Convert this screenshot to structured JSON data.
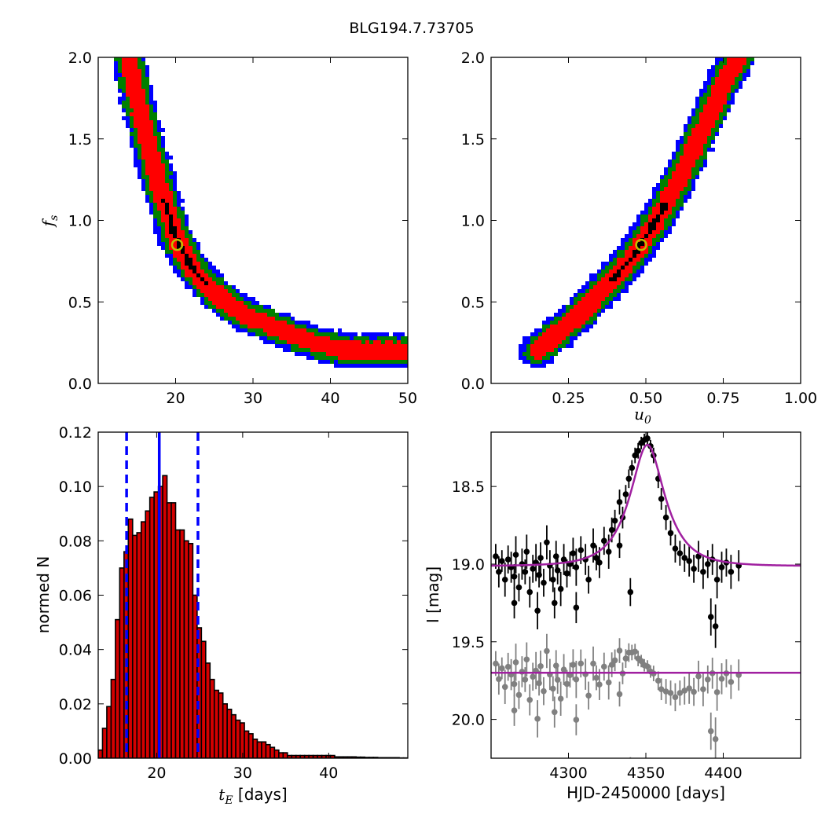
{
  "title": "BLG194.7.73705",
  "colors": {
    "contour_outer": "#0000ff",
    "contour_mid": "#008000",
    "contour_inner": "#ff0000",
    "contour_core": "#000000",
    "best_fit_marker": "#bfbf00",
    "hist_fill": "#d40000",
    "hist_lines": "#0000ff",
    "model_curve": "#a020a0",
    "data_points": "#000000",
    "residual_points": "#808080"
  },
  "chart_data": [
    {
      "id": "fs_vs_tE",
      "type": "heatmap",
      "ylabel": "f_s",
      "xlabel": "",
      "xlim": [
        10,
        50
      ],
      "ylim": [
        0,
        2.0
      ],
      "xticks": [
        "20",
        "30",
        "40",
        "50"
      ],
      "yticks": [
        "0.0",
        "0.5",
        "1.0",
        "1.5",
        "2.0"
      ],
      "xtick_values": [
        20,
        30,
        40,
        50
      ],
      "ytick_values": [
        0,
        0.5,
        1.0,
        1.5,
        2.0
      ],
      "best_fit": {
        "x": 20.2,
        "y": 0.85
      },
      "ridge": [
        [
          14.0,
          2.0
        ],
        [
          15.0,
          1.75
        ],
        [
          16.0,
          1.55
        ],
        [
          17.0,
          1.38
        ],
        [
          18.0,
          1.2
        ],
        [
          19.0,
          1.05
        ],
        [
          20.0,
          0.9
        ],
        [
          21.0,
          0.8
        ],
        [
          22.0,
          0.72
        ],
        [
          23.0,
          0.66
        ],
        [
          25.0,
          0.56
        ],
        [
          27.0,
          0.48
        ],
        [
          29.0,
          0.42
        ],
        [
          32.0,
          0.36
        ],
        [
          35.0,
          0.3
        ],
        [
          38.0,
          0.25
        ],
        [
          42.0,
          0.2
        ],
        [
          49.5,
          0.2
        ]
      ],
      "widths": {
        "core": 0.05,
        "inner": 0.1,
        "mid": 0.15,
        "outer": 0.2
      }
    },
    {
      "id": "fs_vs_u0",
      "type": "heatmap",
      "xlabel": "u_0",
      "ylabel": "",
      "xlim": [
        0.0,
        1.0
      ],
      "ylim": [
        0,
        2.0
      ],
      "xticks": [
        "0.25",
        "0.50",
        "0.75",
        "1.00"
      ],
      "yticks": [
        "0.0",
        "0.5",
        "1.0",
        "1.5",
        "2.0"
      ],
      "xtick_values": [
        0.25,
        0.5,
        0.75,
        1.0
      ],
      "ytick_values": [
        0,
        0.5,
        1.0,
        1.5,
        2.0
      ],
      "best_fit": {
        "x": 0.485,
        "y": 0.85
      },
      "ridge": [
        [
          0.15,
          0.2
        ],
        [
          0.2,
          0.28
        ],
        [
          0.25,
          0.36
        ],
        [
          0.3,
          0.45
        ],
        [
          0.35,
          0.55
        ],
        [
          0.4,
          0.65
        ],
        [
          0.45,
          0.76
        ],
        [
          0.5,
          0.9
        ],
        [
          0.55,
          1.05
        ],
        [
          0.6,
          1.22
        ],
        [
          0.65,
          1.42
        ],
        [
          0.7,
          1.62
        ],
        [
          0.75,
          1.84
        ],
        [
          0.8,
          2.0
        ]
      ],
      "widths": {
        "core": 0.015,
        "inner": 0.025,
        "mid": 0.035,
        "outer": 0.045
      }
    },
    {
      "id": "tE_histogram",
      "type": "bar",
      "xlabel": "t_E [days]",
      "ylabel": "normed N",
      "xlim": [
        13.2,
        49.2
      ],
      "ylim": [
        0,
        0.12
      ],
      "xticks": [
        "20",
        "30",
        "40"
      ],
      "yticks": [
        "0.00",
        "0.02",
        "0.04",
        "0.06",
        "0.08",
        "0.10",
        "0.12"
      ],
      "xtick_values": [
        20,
        30,
        40
      ],
      "ytick_values": [
        0,
        0.02,
        0.04,
        0.06,
        0.08,
        0.1,
        0.12
      ],
      "bin_start": 13.2,
      "bin_width": 0.5,
      "values": [
        0.003,
        0.011,
        0.019,
        0.029,
        0.051,
        0.07,
        0.076,
        0.088,
        0.082,
        0.083,
        0.087,
        0.091,
        0.096,
        0.098,
        0.1,
        0.104,
        0.094,
        0.094,
        0.084,
        0.084,
        0.08,
        0.079,
        0.06,
        0.048,
        0.043,
        0.035,
        0.029,
        0.025,
        0.024,
        0.02,
        0.018,
        0.016,
        0.014,
        0.013,
        0.01,
        0.009,
        0.007,
        0.006,
        0.006,
        0.005,
        0.004,
        0.003,
        0.002,
        0.002,
        0.001,
        0.001,
        0.001,
        0.001,
        0.001,
        0.001,
        0.001,
        0.001,
        0.001,
        0.001,
        0.001,
        0.0005,
        0.0005,
        0.0005,
        0.0005,
        0.0005,
        0.0004,
        0.0004,
        0.0003,
        0.0003,
        0.0003,
        0.0002,
        0.0002,
        0.0002,
        0.0002,
        0.0002,
        0.0001,
        0.0001
      ],
      "median": 20.3,
      "lower": 16.5,
      "upper": 24.8
    },
    {
      "id": "light_curve",
      "type": "scatter",
      "xlabel": "HJD-2450000 [days]",
      "ylabel": "I [mag]",
      "xlim": [
        4250,
        4450
      ],
      "ylim": [
        20.25,
        18.15
      ],
      "xticks": [
        "4300",
        "4350",
        "4400"
      ],
      "yticks": [
        "18.5",
        "19.0",
        "19.5",
        "20.0"
      ],
      "xtick_values": [
        4300,
        4350,
        4400
      ],
      "ytick_values": [
        18.5,
        19.0,
        19.5,
        20.0
      ],
      "model": {
        "t0": 4351,
        "tE": 20.2,
        "u0": 0.485,
        "fs": 0.85,
        "I_base": 19.01,
        "t_range": [
          4250,
          4450
        ]
      },
      "residual_offset": 19.7,
      "observed_t": [
        4253,
        4255,
        4257,
        4259,
        4261,
        4263,
        4265,
        4266,
        4268,
        4270,
        4272,
        4273,
        4275,
        4277,
        4279,
        4281,
        4282,
        4284,
        4286,
        4288,
        4290,
        4292,
        4293,
        4295,
        4297,
        4299,
        4301,
        4303,
        4305,
        4308,
        4311,
        4313,
        4316,
        4318,
        4320,
        4323,
        4326,
        4328,
        4330,
        4333,
        4335,
        4337,
        4339,
        4341,
        4343,
        4345,
        4347,
        4349,
        4351,
        4353,
        4355,
        4358,
        4360,
        4363,
        4366,
        4369,
        4372,
        4375,
        4378,
        4381,
        4384,
        4387,
        4390,
        4393,
        4396,
        4399,
        4402,
        4405,
        4410
      ],
      "observed_mag": [
        18.95,
        19.05,
        18.98,
        19.1,
        18.97,
        19.02,
        19.08,
        18.94,
        19.15,
        19.0,
        19.05,
        18.92,
        19.18,
        19.03,
        18.99,
        19.07,
        18.96,
        19.12,
        18.86,
        19.01,
        19.1,
        18.95,
        19.04,
        19.16,
        18.97,
        19.06,
        19.0,
        18.93,
        19.02,
        18.91,
        18.97,
        19.1,
        18.88,
        18.96,
        18.99,
        18.85,
        18.92,
        18.78,
        18.72,
        18.6,
        18.7,
        18.55,
        18.45,
        18.38,
        18.3,
        18.27,
        18.22,
        18.2,
        18.19,
        18.24,
        18.3,
        18.45,
        18.58,
        18.7,
        18.8,
        18.9,
        18.93,
        18.96,
        18.98,
        19.03,
        18.95,
        19.05,
        19.0,
        18.97,
        19.1,
        19.02,
        18.99,
        19.05,
        19.01
      ],
      "observed_err": [
        0.08,
        0.1,
        0.07,
        0.11,
        0.09,
        0.1,
        0.08,
        0.12,
        0.09,
        0.1,
        0.08,
        0.11,
        0.1,
        0.09,
        0.12,
        0.08,
        0.1,
        0.09,
        0.11,
        0.1,
        0.08,
        0.1,
        0.09,
        0.11,
        0.1,
        0.09,
        0.08,
        0.1,
        0.12,
        0.09,
        0.1,
        0.09,
        0.11,
        0.08,
        0.1,
        0.09,
        0.11,
        0.08,
        0.07,
        0.08,
        0.07,
        0.06,
        0.06,
        0.05,
        0.05,
        0.05,
        0.04,
        0.04,
        0.04,
        0.04,
        0.05,
        0.06,
        0.07,
        0.08,
        0.08,
        0.09,
        0.08,
        0.09,
        0.1,
        0.09,
        0.1,
        0.11,
        0.09,
        0.1,
        0.12,
        0.1,
        0.09,
        0.11,
        0.1
      ],
      "outliers_t": [
        4265,
        4280,
        4291,
        4305,
        4333,
        4392,
        4395,
        4340
      ],
      "outliers_mag": [
        19.25,
        19.3,
        19.25,
        19.28,
        18.88,
        19.34,
        19.4,
        19.18
      ],
      "outliers_err": [
        0.1,
        0.12,
        0.1,
        0.1,
        0.08,
        0.12,
        0.14,
        0.09
      ]
    }
  ]
}
